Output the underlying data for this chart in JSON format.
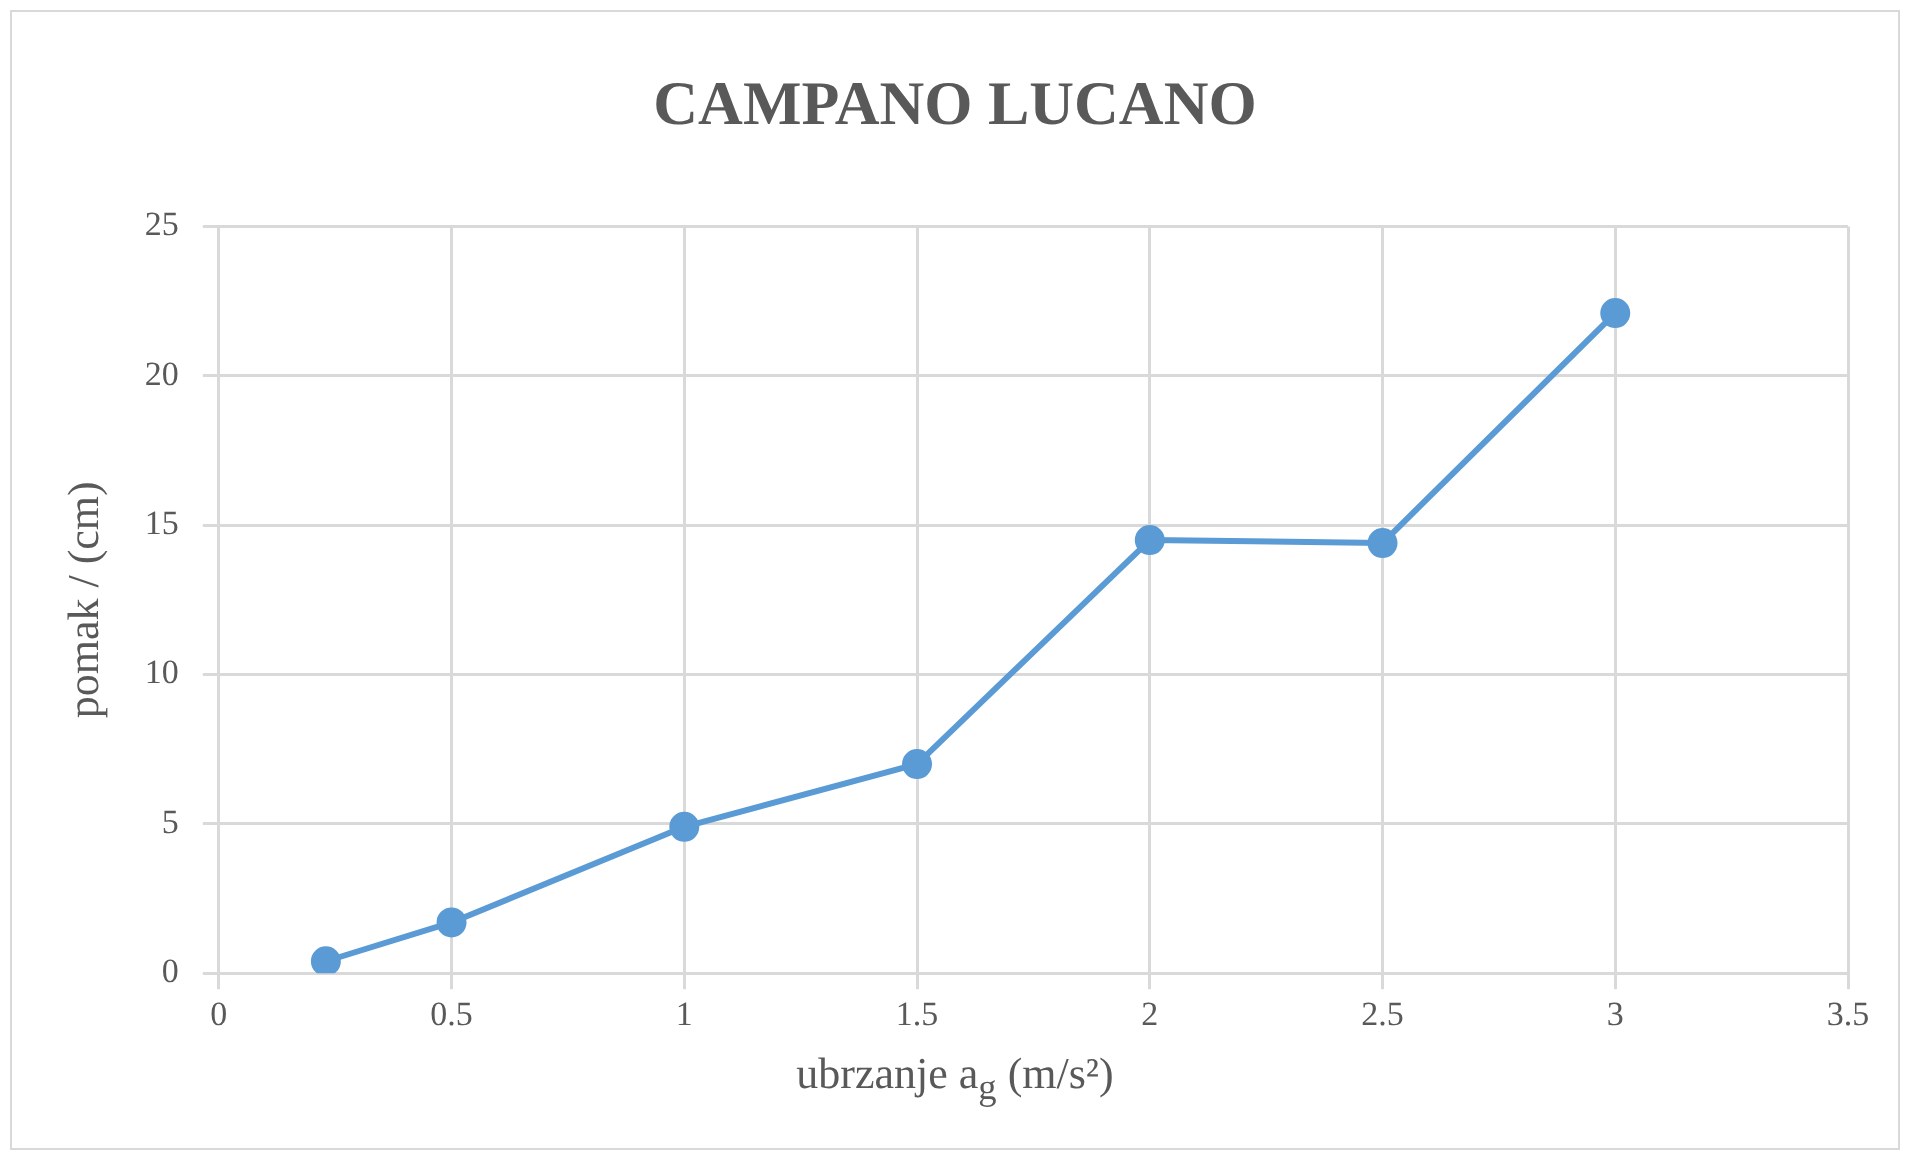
{
  "chart_data": {
    "type": "line",
    "title": "CAMPANO LUCANO",
    "xlabel": "ubrzanje a$_{g}$ (m/s²)",
    "ylabel": "pomak / (cm)",
    "x": [
      0.23,
      0.5,
      1,
      1.5,
      2,
      2.5,
      3
    ],
    "series": [
      {
        "color": "#5b9bd5",
        "values": [
          0.4,
          1.7,
          4.9,
          7,
          14.5,
          14.4,
          22.1
        ]
      }
    ],
    "xlim": [
      0,
      3.5
    ],
    "xticks": [
      0,
      0.5,
      1,
      1.5,
      2,
      2.5,
      3,
      3.5
    ],
    "ylim": [
      0,
      25
    ],
    "yticks": [
      0,
      5,
      10,
      15,
      20,
      25
    ],
    "grid": true,
    "legend": false,
    "marker": "circle",
    "line_style": "solid"
  }
}
